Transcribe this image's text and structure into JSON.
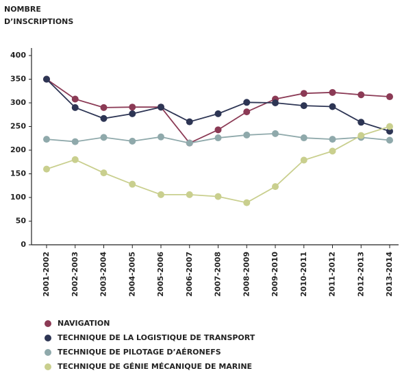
{
  "chart_data": {
    "type": "line",
    "ylabel_lines": [
      "NOMBRE",
      "D’INSCRIPTIONS"
    ],
    "categories": [
      "2001-2002",
      "2002-2003",
      "2003-2004",
      "2004-2005",
      "2005-2006",
      "2006-2007",
      "2007-2008",
      "2008-2009",
      "2009-2010",
      "2010-2011",
      "2011-2012",
      "2012-2013",
      "2013-2014"
    ],
    "series": [
      {
        "name": "NAVIGATION",
        "color": "#8b3a55",
        "values": [
          350,
          308,
          290,
          291,
          291,
          215,
          243,
          281,
          308,
          320,
          322,
          317,
          313
        ]
      },
      {
        "name": "TECHNIQUE DE LA LOGISTIQUE DE TRANSPORT",
        "color": "#2d3554",
        "values": [
          350,
          290,
          267,
          277,
          291,
          260,
          277,
          301,
          300,
          294,
          292,
          259,
          240
        ]
      },
      {
        "name": "TECHNIQUE DE PILOTAGE D’AÉRONEFS",
        "color": "#8fa9ab",
        "values": [
          223,
          218,
          227,
          219,
          228,
          215,
          226,
          232,
          235,
          226,
          223,
          227,
          221
        ]
      },
      {
        "name": "TECHNIQUE DE GÉNIE MÉCANIQUE DE MARINE",
        "color": "#c9cf8e",
        "values": [
          160,
          180,
          152,
          128,
          106,
          106,
          102,
          89,
          123,
          179,
          198,
          231,
          250
        ]
      }
    ],
    "ylim": [
      0,
      400
    ],
    "yticks": [
      0,
      50,
      100,
      150,
      200,
      250,
      300,
      350,
      400
    ],
    "grid": false,
    "legend": "bottom"
  }
}
